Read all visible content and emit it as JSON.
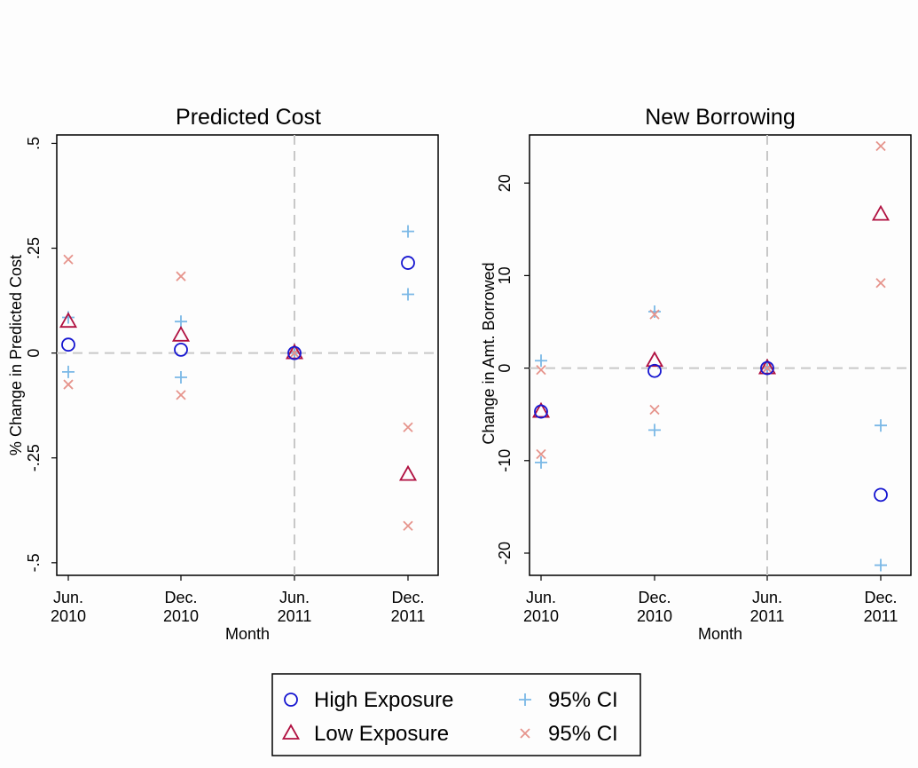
{
  "chart_data": [
    {
      "type": "scatter",
      "title": "Predicted Cost",
      "xlabel": "Month",
      "ylabel": "% Change in Predicted Cost",
      "x_categories": [
        {
          "line1": "Jun.",
          "line2": "2010"
        },
        {
          "line1": "Dec.",
          "line2": "2010"
        },
        {
          "line1": "Jun.",
          "line2": "2011"
        },
        {
          "line1": "Dec.",
          "line2": "2011"
        }
      ],
      "ylim": [
        -0.53,
        0.52
      ],
      "yticks": [
        {
          "value": 0.5,
          "label": ".5"
        },
        {
          "value": 0.25,
          "label": ".25"
        },
        {
          "value": 0,
          "label": "0"
        },
        {
          "value": -0.25,
          "label": "-.25"
        },
        {
          "value": -0.5,
          "label": "-.5"
        }
      ],
      "reference_lines": {
        "y": 0,
        "x_index": 2
      },
      "series": [
        {
          "name": "High Exposure",
          "marker": "circle",
          "color": "#1515d0",
          "values": [
            0.02,
            0.008,
            0,
            0.215
          ]
        },
        {
          "name": "Low Exposure",
          "marker": "triangle",
          "color": "#b01040",
          "values": [
            0.075,
            0.042,
            0,
            -0.29
          ]
        },
        {
          "name": "95% CI",
          "marker": "plus",
          "color": "#7ab8e6",
          "values": [
            0.085,
            0.075,
            0,
            0.29
          ]
        },
        {
          "marker": "plus",
          "color": "#7ab8e6",
          "values": [
            -0.045,
            -0.058,
            0,
            0.14
          ]
        },
        {
          "name": "95% CI",
          "marker": "x",
          "color": "#e6948c",
          "values": [
            0.223,
            0.183,
            0,
            -0.177
          ]
        },
        {
          "marker": "x",
          "color": "#e6948c",
          "values": [
            -0.075,
            -0.1,
            0,
            -0.412
          ]
        }
      ]
    },
    {
      "type": "scatter",
      "title": "New Borrowing",
      "xlabel": "Month",
      "ylabel": "Change in Amt. Borrowed",
      "x_categories": [
        {
          "line1": "Jun.",
          "line2": "2010"
        },
        {
          "line1": "Dec.",
          "line2": "2010"
        },
        {
          "line1": "Jun.",
          "line2": "2011"
        },
        {
          "line1": "Dec.",
          "line2": "2011"
        }
      ],
      "ylim": [
        -22.4,
        25.2
      ],
      "yticks": [
        {
          "value": 20,
          "label": "20"
        },
        {
          "value": 10,
          "label": "10"
        },
        {
          "value": 0,
          "label": "0"
        },
        {
          "value": -10,
          "label": "-10"
        },
        {
          "value": -20,
          "label": "-20"
        }
      ],
      "reference_lines": {
        "y": 0,
        "x_index": 2
      },
      "series": [
        {
          "name": "High Exposure",
          "marker": "circle",
          "color": "#1515d0",
          "values": [
            -4.7,
            -0.3,
            0,
            -13.7
          ]
        },
        {
          "name": "Low Exposure",
          "marker": "triangle",
          "color": "#b01040",
          "values": [
            -4.7,
            0.8,
            0,
            16.6
          ]
        },
        {
          "name": "95% CI",
          "marker": "plus",
          "color": "#7ab8e6",
          "values": [
            0.8,
            6.1,
            0,
            -6.2
          ]
        },
        {
          "marker": "plus",
          "color": "#7ab8e6",
          "values": [
            -10.2,
            -6.7,
            0,
            -21.3
          ]
        },
        {
          "name": "95% CI",
          "marker": "x",
          "color": "#e6948c",
          "values": [
            -0.2,
            5.8,
            0,
            24.0
          ]
        },
        {
          "marker": "x",
          "color": "#e6948c",
          "values": [
            -9.3,
            -4.5,
            0,
            9.2
          ]
        }
      ]
    }
  ],
  "legend": {
    "placement": "bottom-center",
    "items": [
      {
        "label": "High Exposure",
        "marker": "circle",
        "color": "#1515d0"
      },
      {
        "label": "95% CI",
        "marker": "plus",
        "color": "#7ab8e6"
      },
      {
        "label": "Low Exposure",
        "marker": "triangle",
        "color": "#b01040"
      },
      {
        "label": "95% CI",
        "marker": "x",
        "color": "#e6948c"
      }
    ]
  }
}
